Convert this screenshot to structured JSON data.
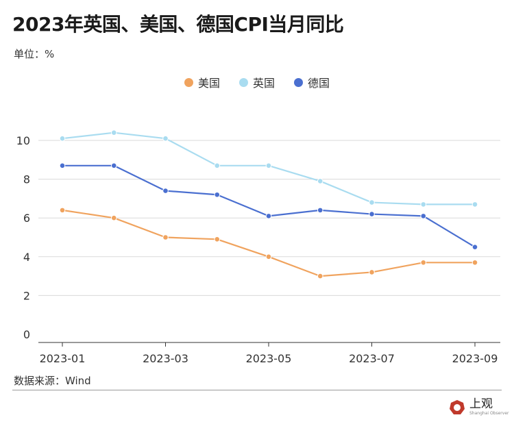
{
  "title": "2023年英国、美国、德国CPI当月同比",
  "unit_label": "单位：%",
  "source_label": "数据来源：Wind",
  "logo": {
    "text": "上观",
    "subtext": "Shanghai Observer",
    "color": "#c0392b"
  },
  "chart_data": {
    "type": "line",
    "title": "2023年英国、美国、德国CPI当月同比",
    "xlabel": "",
    "ylabel": "单位：%",
    "x": [
      "2023-01",
      "2023-02",
      "2023-03",
      "2023-04",
      "2023-05",
      "2023-06",
      "2023-07",
      "2023-08",
      "2023-09"
    ],
    "x_tick_labels": [
      "2023-01",
      "2023-03",
      "2023-05",
      "2023-07",
      "2023-09"
    ],
    "yticks": [
      0,
      2,
      4,
      6,
      8,
      10
    ],
    "ylim": [
      0,
      10
    ],
    "grid": true,
    "legend": "top-center",
    "series": [
      {
        "name": "美国",
        "color": "#f0a35e",
        "values": [
          6.4,
          6.0,
          5.0,
          4.9,
          4.0,
          3.0,
          3.2,
          3.7,
          3.7
        ]
      },
      {
        "name": "英国",
        "color": "#a9dcf0",
        "values": [
          10.1,
          10.4,
          10.1,
          8.7,
          8.7,
          7.9,
          6.8,
          6.7,
          6.7
        ]
      },
      {
        "name": "德国",
        "color": "#4a6fd0",
        "values": [
          8.7,
          8.7,
          7.4,
          7.2,
          6.1,
          6.4,
          6.2,
          6.1,
          4.5
        ]
      }
    ]
  }
}
